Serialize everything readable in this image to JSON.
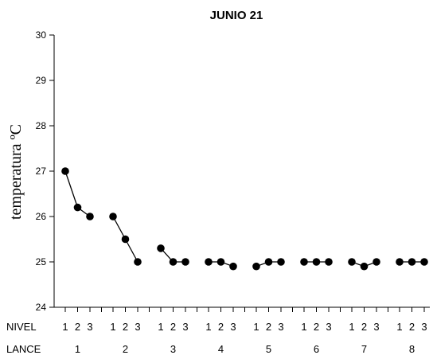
{
  "chart_data": {
    "type": "line",
    "title": "JUNIO 21",
    "ylabel": "temperatura ºC",
    "ylim": [
      24,
      30
    ],
    "yticks": [
      "24",
      "25",
      "26",
      "27",
      "28",
      "29",
      "30"
    ],
    "grid": false,
    "legend": "none",
    "nivel_label": "NIVEL",
    "lance_label": "LANCE",
    "niveles": [
      "1",
      "2",
      "3"
    ],
    "series": [
      {
        "lance": "1",
        "values": [
          27.0,
          26.2,
          26.0
        ]
      },
      {
        "lance": "2",
        "values": [
          26.0,
          25.5,
          25.0
        ]
      },
      {
        "lance": "3",
        "values": [
          25.3,
          25.0,
          25.0
        ]
      },
      {
        "lance": "4",
        "values": [
          25.0,
          25.0,
          24.9
        ]
      },
      {
        "lance": "5",
        "values": [
          24.9,
          25.0,
          25.0
        ]
      },
      {
        "lance": "6",
        "values": [
          25.0,
          25.0,
          25.0
        ]
      },
      {
        "lance": "7",
        "values": [
          25.0,
          24.9,
          25.0
        ]
      },
      {
        "lance": "8",
        "values": [
          25.0,
          25.0,
          25.0
        ]
      }
    ],
    "colors": {
      "line": "#000000",
      "marker": "#000000"
    }
  }
}
